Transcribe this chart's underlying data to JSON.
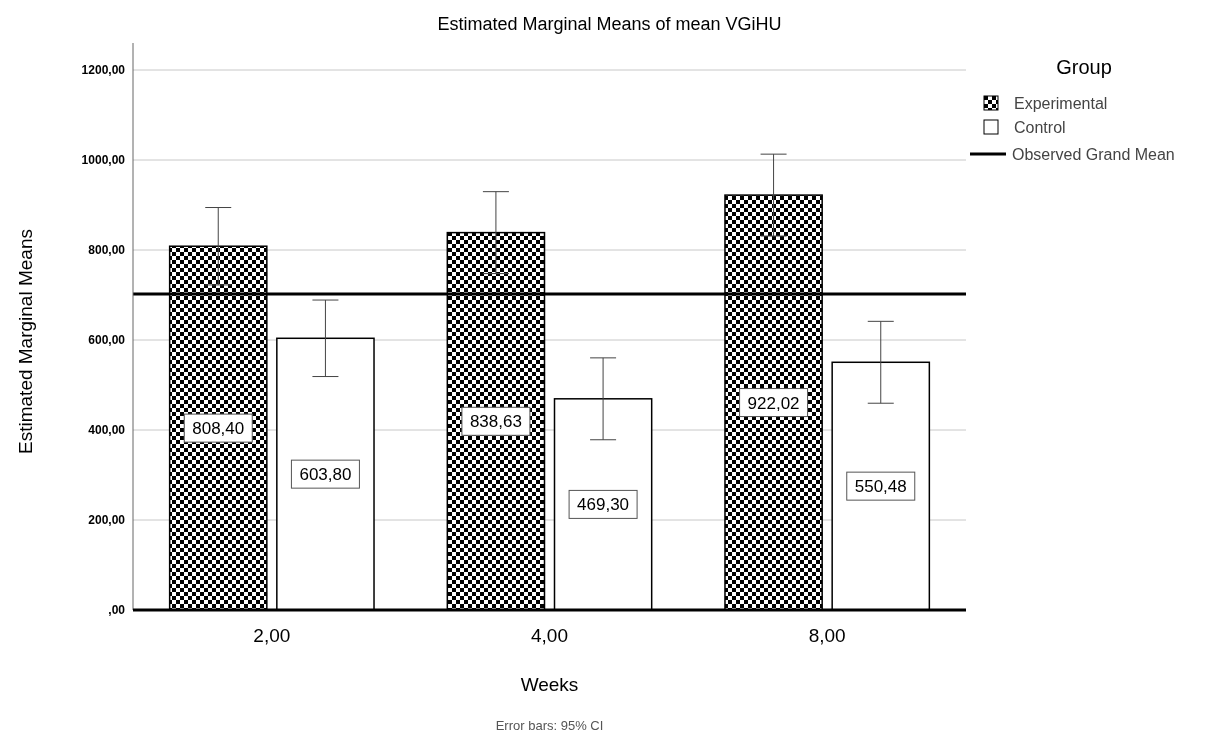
{
  "chart_data": {
    "type": "bar",
    "title": "Estimated Marginal Means of mean VGiHU",
    "xlabel": "Weeks",
    "ylabel": "Estimated Marginal Means",
    "legend_title": "Group",
    "categories": [
      "2,00",
      "4,00",
      "8,00"
    ],
    "series": [
      {
        "name": "Experimental",
        "color": "#000000",
        "values": [
          808.4,
          838.63,
          922.02
        ],
        "errors": [
          86,
          91,
          91
        ],
        "value_labels": [
          "808,40",
          "838,63",
          "922,02"
        ]
      },
      {
        "name": "Control",
        "color": "#ffffff",
        "values": [
          603.8,
          469.3,
          550.48
        ],
        "errors": [
          85,
          91,
          91
        ],
        "value_labels": [
          "603,80",
          "469,30",
          "550,48"
        ]
      }
    ],
    "ylim": [
      0,
      1260
    ],
    "yticks": [
      {
        "value": 0,
        "label": ",00"
      },
      {
        "value": 200,
        "label": "200,00"
      },
      {
        "value": 400,
        "label": "400,00"
      },
      {
        "value": 600,
        "label": "600,00"
      },
      {
        "value": 800,
        "label": "800,00"
      },
      {
        "value": 1000,
        "label": "1000,00"
      },
      {
        "value": 1200,
        "label": "1200,00"
      }
    ],
    "grid": "y",
    "legend": "top right",
    "ref_lines": [
      {
        "axis": "y",
        "value": 702,
        "label": "Observed Grand Mean",
        "color": "#000000"
      }
    ],
    "annotations": [
      "Error bars: 95% CI"
    ]
  }
}
